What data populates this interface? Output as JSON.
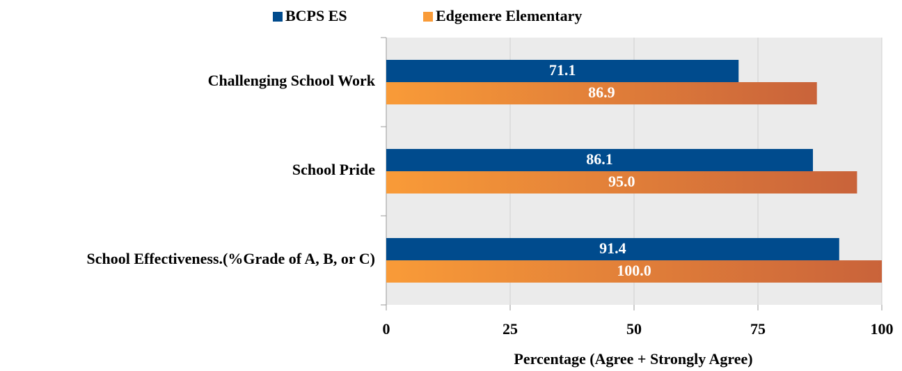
{
  "chart_data": {
    "type": "bar",
    "orientation": "horizontal",
    "x_label": "Percentage (Agree + Strongly Agree)",
    "categories": [
      "Challenging School Work",
      "School Pride",
      "School Effectiveness.(%Grade of A, B, or C)"
    ],
    "series": [
      {
        "name": "BCPS ES",
        "color": "#004b8d",
        "values": [
          71.1,
          86.1,
          91.4
        ],
        "value_labels": [
          "71.1",
          "86.1",
          "91.4"
        ]
      },
      {
        "name": "Edgemere Elementary",
        "color": "#f99b38",
        "values": [
          86.9,
          95.0,
          100.0
        ],
        "value_labels": [
          "86.9",
          "95.0",
          "100.0"
        ]
      }
    ],
    "xlim": [
      0,
      100
    ],
    "xticks": [
      0,
      25,
      50,
      75,
      100
    ],
    "grid": true,
    "legend": "top"
  }
}
